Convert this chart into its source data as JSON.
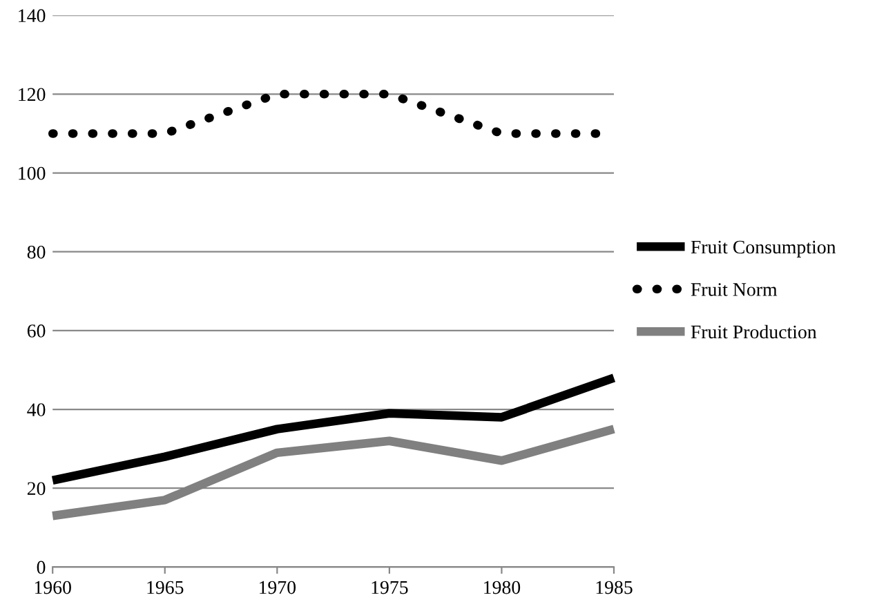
{
  "chart_data": {
    "type": "line",
    "x": [
      1960,
      1965,
      1970,
      1975,
      1980,
      1985
    ],
    "series": [
      {
        "name": "Fruit Consumption",
        "color": "#000000",
        "values": [
          22,
          28,
          35,
          39,
          38,
          48
        ],
        "line_style": "solid"
      },
      {
        "name": "Fruit Norm",
        "color": "#000000",
        "values": [
          110,
          110,
          120,
          120,
          110,
          110
        ],
        "line_style": "dotted"
      },
      {
        "name": "Fruit Production",
        "color": "#808080",
        "values": [
          13,
          17,
          29,
          32,
          27,
          35
        ],
        "line_style": "solid"
      }
    ],
    "xlim": [
      1960,
      1985
    ],
    "xticks": [
      1960,
      1965,
      1970,
      1975,
      1980,
      1985
    ],
    "ylim": [
      0,
      140
    ],
    "yticks": [
      0,
      20,
      40,
      60,
      80,
      100,
      120,
      140
    ],
    "grid": "y",
    "legend": "right",
    "marker": "none"
  }
}
